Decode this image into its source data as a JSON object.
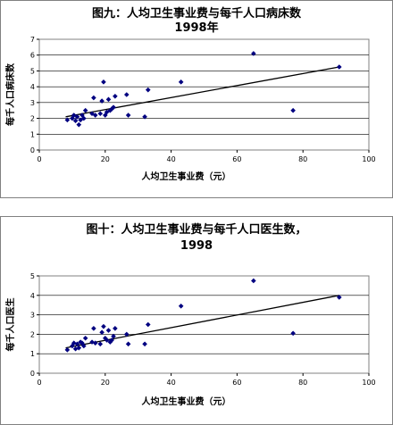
{
  "chart_data": [
    {
      "type": "scatter",
      "title": "图九：人均卫生事业费与每千人口病床数",
      "subtitle": "1998年",
      "xlabel": "人均卫生事业费（元）",
      "ylabel": "每千人口病床数",
      "xlim": [
        0,
        100
      ],
      "ylim": [
        0,
        7
      ],
      "xticks": [
        "0",
        "20",
        "40",
        "60",
        "80",
        "100"
      ],
      "yticks": [
        "0",
        "1",
        "2",
        "3",
        "4",
        "5",
        "6",
        "7"
      ],
      "grid": "horizontal",
      "trendline": {
        "x": [
          8,
          91
        ],
        "y": [
          2.1,
          5.25
        ]
      },
      "marker_color": "#000080",
      "points": [
        {
          "x": 8.5,
          "y": 1.9
        },
        {
          "x": 10,
          "y": 2.0
        },
        {
          "x": 10.5,
          "y": 2.2
        },
        {
          "x": 11,
          "y": 1.85
        },
        {
          "x": 11.5,
          "y": 2.1
        },
        {
          "x": 12,
          "y": 1.6
        },
        {
          "x": 12.5,
          "y": 1.9
        },
        {
          "x": 13,
          "y": 2.2
        },
        {
          "x": 13.5,
          "y": 2.0
        },
        {
          "x": 14,
          "y": 2.5
        },
        {
          "x": 16,
          "y": 2.3
        },
        {
          "x": 16.5,
          "y": 3.3
        },
        {
          "x": 17,
          "y": 2.2
        },
        {
          "x": 18.5,
          "y": 2.3
        },
        {
          "x": 19,
          "y": 3.1
        },
        {
          "x": 19.5,
          "y": 4.3
        },
        {
          "x": 20,
          "y": 2.2
        },
        {
          "x": 20.5,
          "y": 2.4
        },
        {
          "x": 21,
          "y": 3.2
        },
        {
          "x": 21.5,
          "y": 2.5
        },
        {
          "x": 22,
          "y": 2.6
        },
        {
          "x": 22.5,
          "y": 2.7
        },
        {
          "x": 23,
          "y": 3.4
        },
        {
          "x": 26.5,
          "y": 3.5
        },
        {
          "x": 27,
          "y": 2.2
        },
        {
          "x": 32,
          "y": 2.1
        },
        {
          "x": 33,
          "y": 3.8
        },
        {
          "x": 43,
          "y": 4.3
        },
        {
          "x": 65,
          "y": 6.1
        },
        {
          "x": 77,
          "y": 2.5
        },
        {
          "x": 91,
          "y": 5.25
        }
      ]
    },
    {
      "type": "scatter",
      "title": "图十：人均卫生事业费与每千人口医生数，",
      "subtitle": "1998",
      "xlabel": "人均卫生事业费（元）",
      "ylabel": "每千人口医生",
      "xlim": [
        0,
        100
      ],
      "ylim": [
        0,
        5
      ],
      "xticks": [
        "0",
        "20",
        "40",
        "60",
        "80",
        "100"
      ],
      "yticks": [
        "0",
        "1",
        "2",
        "3",
        "4",
        "5"
      ],
      "grid": "horizontal",
      "trendline": {
        "x": [
          8,
          91
        ],
        "y": [
          1.3,
          4.0
        ]
      },
      "marker_color": "#000080",
      "points": [
        {
          "x": 8.5,
          "y": 1.2
        },
        {
          "x": 10,
          "y": 1.4
        },
        {
          "x": 10.5,
          "y": 1.55
        },
        {
          "x": 11,
          "y": 1.25
        },
        {
          "x": 11.5,
          "y": 1.5
        },
        {
          "x": 12,
          "y": 1.3
        },
        {
          "x": 12.5,
          "y": 1.6
        },
        {
          "x": 13,
          "y": 1.55
        },
        {
          "x": 13.5,
          "y": 1.4
        },
        {
          "x": 14,
          "y": 1.8
        },
        {
          "x": 16,
          "y": 1.6
        },
        {
          "x": 16.5,
          "y": 2.3
        },
        {
          "x": 17,
          "y": 1.55
        },
        {
          "x": 18.5,
          "y": 1.5
        },
        {
          "x": 19,
          "y": 2.1
        },
        {
          "x": 19.5,
          "y": 2.4
        },
        {
          "x": 20,
          "y": 1.8
        },
        {
          "x": 20.5,
          "y": 1.7
        },
        {
          "x": 21,
          "y": 2.2
        },
        {
          "x": 21.5,
          "y": 1.6
        },
        {
          "x": 22,
          "y": 1.7
        },
        {
          "x": 22.5,
          "y": 1.9
        },
        {
          "x": 23,
          "y": 2.3
        },
        {
          "x": 26.5,
          "y": 2.0
        },
        {
          "x": 27,
          "y": 1.5
        },
        {
          "x": 32,
          "y": 1.5
        },
        {
          "x": 33,
          "y": 2.5
        },
        {
          "x": 43,
          "y": 3.45
        },
        {
          "x": 65,
          "y": 4.75
        },
        {
          "x": 77,
          "y": 2.05
        },
        {
          "x": 91,
          "y": 3.9
        }
      ]
    }
  ]
}
